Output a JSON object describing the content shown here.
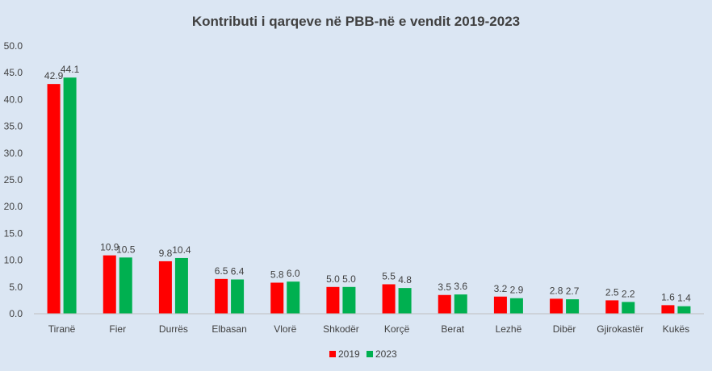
{
  "chart_data": {
    "type": "bar",
    "title": "Kontributi i qarqeve në PBB-në e vendit 2019-2023",
    "categories": [
      "Tiranë",
      "Fier",
      "Durrës",
      "Elbasan",
      "Vlorë",
      "Shkodër",
      "Korçë",
      "Berat",
      "Lezhë",
      "Dibër",
      "Gjirokastër",
      "Kukës"
    ],
    "series": [
      {
        "name": "2019",
        "color": "#ff0000",
        "values": [
          42.9,
          10.9,
          9.8,
          6.5,
          5.8,
          5.0,
          5.5,
          3.5,
          3.2,
          2.8,
          2.5,
          1.6
        ]
      },
      {
        "name": "2023",
        "color": "#00b050",
        "values": [
          44.1,
          10.5,
          10.4,
          6.4,
          6.0,
          5.0,
          4.8,
          3.6,
          2.9,
          2.7,
          2.2,
          1.4
        ]
      }
    ],
    "yticks": [
      "0.0",
      "5.0",
      "10.0",
      "15.0",
      "20.0",
      "25.0",
      "30.0",
      "35.0",
      "40.0",
      "45.0",
      "50.0"
    ],
    "ylim": [
      0,
      50
    ],
    "xlabel": "",
    "ylabel": "",
    "grid": false,
    "legend": "bottom"
  }
}
